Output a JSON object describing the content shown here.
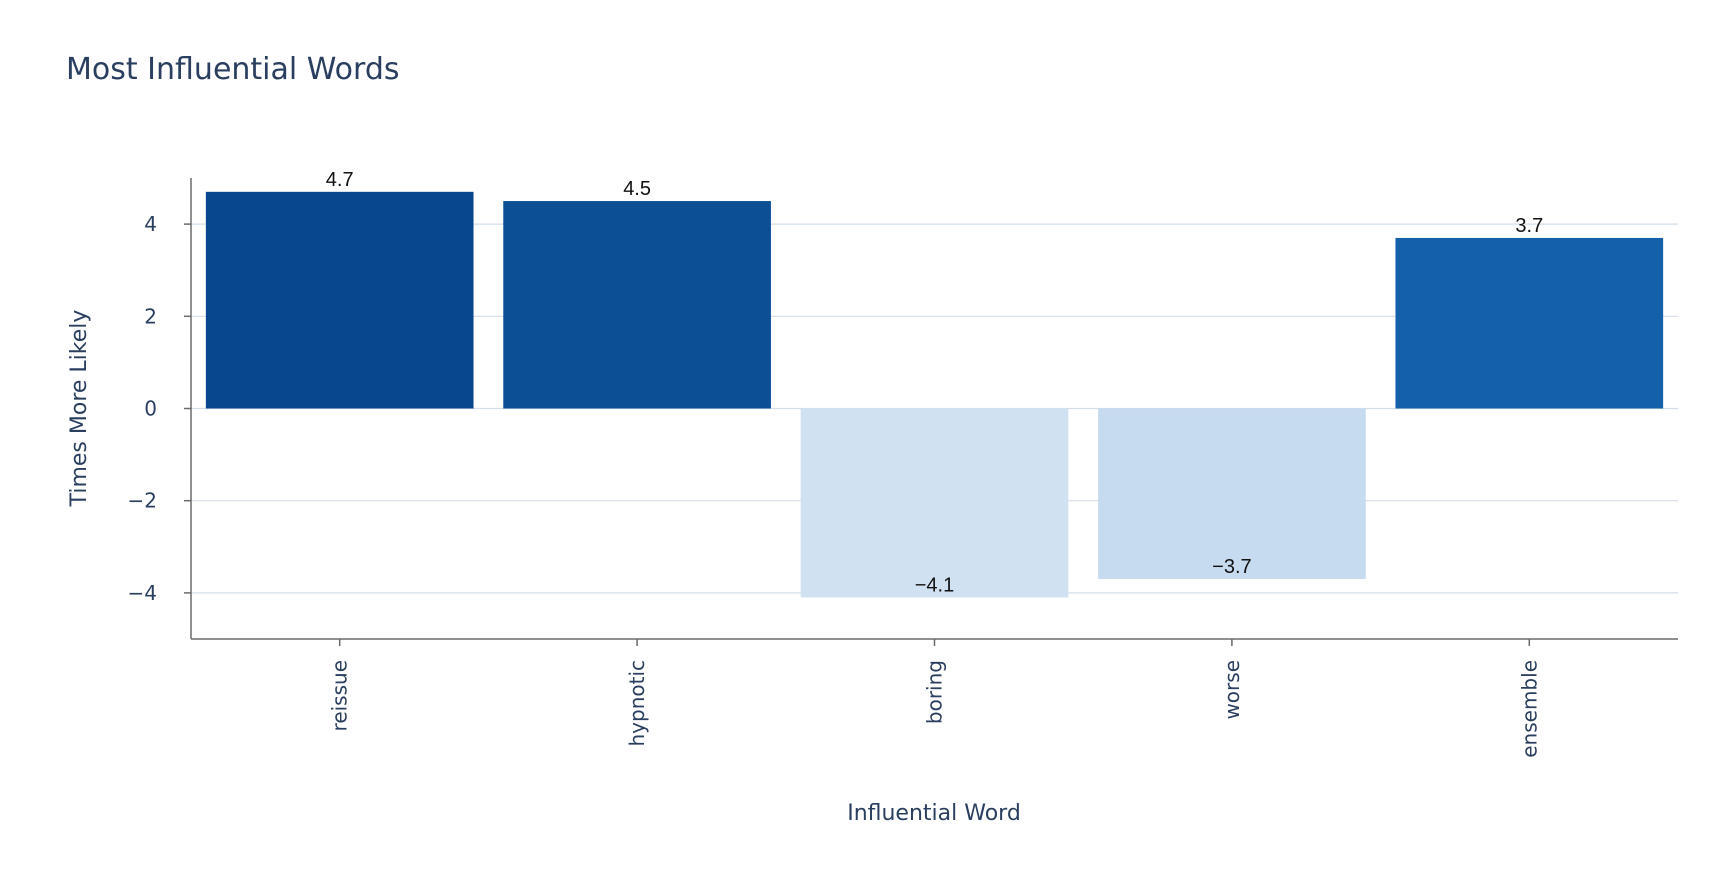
{
  "chart_data": {
    "type": "bar",
    "title": "Most Influential Words",
    "xlabel": "Influential Word",
    "ylabel": "Times More Likely",
    "categories": [
      "reissue",
      "hypnotic",
      "boring",
      "worse",
      "ensemble"
    ],
    "values": [
      4.7,
      4.5,
      -4.1,
      -3.7,
      3.7
    ],
    "value_labels": [
      "4.7",
      "4.5",
      "−4.1",
      "−3.7",
      "3.7"
    ],
    "ylim": [
      -5,
      5
    ],
    "yticks": [
      -4,
      -2,
      0,
      2,
      4
    ],
    "ytick_labels": [
      "−4",
      "−2",
      "0",
      "2",
      "4"
    ],
    "bar_colors": [
      "#08478d",
      "#0c4f94",
      "#d0e1f2",
      "#c6dbef",
      "#1561a9"
    ],
    "grid": true,
    "legend": false
  }
}
